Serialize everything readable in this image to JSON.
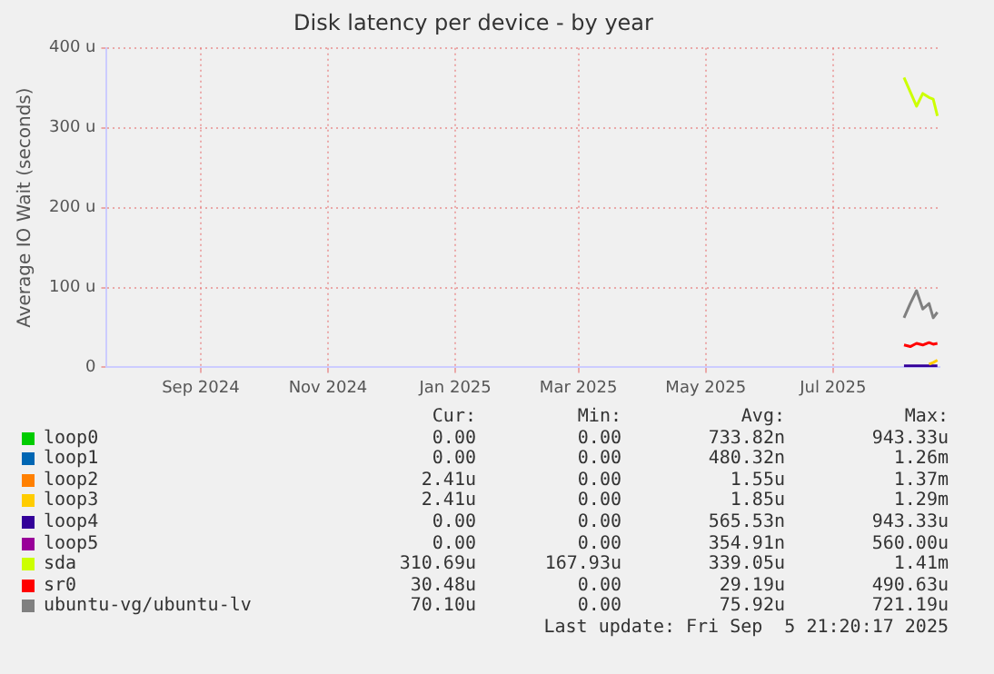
{
  "chart_data": {
    "type": "line",
    "title": "Disk latency per device - by year",
    "ylabel": "Average IO Wait (seconds)",
    "x": [
      "2025-08-19",
      "2025-08-22",
      "2025-08-25",
      "2025-08-28",
      "2025-08-31",
      "2025-09-02",
      "2025-09-04"
    ],
    "xlim": [
      "2024-08-02",
      "2025-09-05"
    ],
    "xticks": [
      {
        "value": "2024-09-16",
        "label": "Sep 2024"
      },
      {
        "value": "2024-11-16",
        "label": "Nov 2024"
      },
      {
        "value": "2025-01-16",
        "label": "Jan 2025"
      },
      {
        "value": "2025-03-16",
        "label": "Mar 2025"
      },
      {
        "value": "2025-05-16",
        "label": "May 2025"
      },
      {
        "value": "2025-07-16",
        "label": "Jul 2025"
      }
    ],
    "ylim": [
      0,
      400
    ],
    "yticks": [
      0,
      {
        "value": 100,
        "label": "100 u"
      },
      {
        "value": 200,
        "label": "200 u"
      },
      {
        "value": 300,
        "label": "300 u"
      },
      {
        "value": 400,
        "label": "400 u"
      }
    ],
    "grid": true,
    "legend": "bottom",
    "marker": "none",
    "line_style": "solid",
    "series": [
      {
        "name": "loop0",
        "color": "#00cc00",
        "values": [
          null,
          null,
          null,
          null,
          null,
          null,
          null
        ]
      },
      {
        "name": "loop1",
        "color": "#0066b3",
        "values": [
          null,
          null,
          null,
          null,
          null,
          null,
          null
        ]
      },
      {
        "name": "loop2",
        "color": "#ff8000",
        "values": [
          null,
          null,
          null,
          null,
          null,
          null,
          null
        ]
      },
      {
        "name": "loop3",
        "color": "#ffcc00",
        "values": [
          null,
          null,
          null,
          null,
          4,
          6,
          9
        ]
      },
      {
        "name": "loop4",
        "color": "#330099",
        "values": [
          2,
          2,
          2,
          2,
          2,
          2,
          2
        ]
      },
      {
        "name": "loop5",
        "color": "#990099",
        "values": [
          null,
          null,
          null,
          null,
          null,
          null,
          null
        ]
      },
      {
        "name": "sda",
        "color": "#ccff00",
        "values": [
          363,
          345,
          327,
          343,
          338,
          336,
          315
        ]
      },
      {
        "name": "sr0",
        "color": "#ff0000",
        "values": [
          28,
          26,
          30,
          28,
          31,
          29,
          30
        ]
      },
      {
        "name": "ubuntu-vg/ubuntu-lv",
        "color": "#808080",
        "values": [
          62,
          80,
          96,
          73,
          80,
          62,
          69
        ]
      }
    ],
    "annotations": [
      "Cur:",
      "Min:",
      "Avg:",
      "Max:",
      "0.00",
      "0.00",
      "733.82n",
      "943.33u",
      "0.00",
      "0.00",
      "480.32n",
      "1.26m",
      "2.41u",
      "0.00",
      "1.55u",
      "1.37m",
      "2.41u",
      "0.00",
      "1.85u",
      "1.29m",
      "0.00",
      "0.00",
      "565.53n",
      "943.33u",
      "0.00",
      "0.00",
      "354.91n",
      "560.00u",
      "310.69u",
      "167.93u",
      "339.05u",
      "1.41m",
      "30.48u",
      "0.00",
      "29.19u",
      "490.63u",
      "70.10u",
      "0.00",
      "75.92u",
      "721.19u",
      "Last update: Fri Sep  5 21:20:17 2025"
    ]
  }
}
